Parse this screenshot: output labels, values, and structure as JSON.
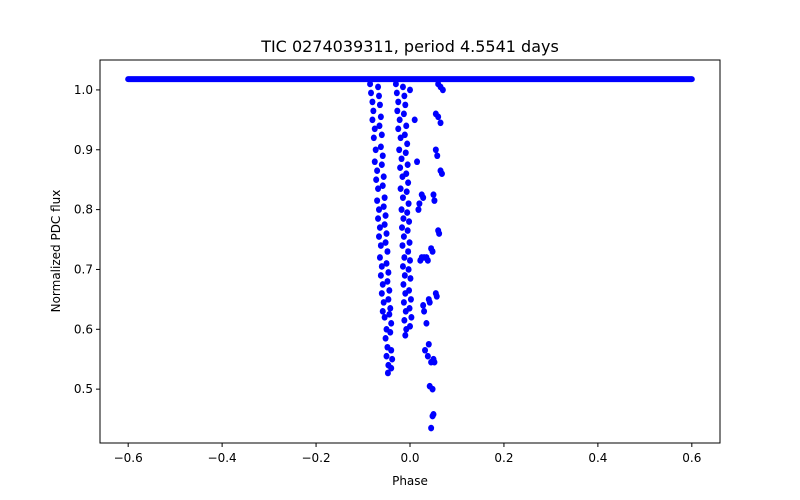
{
  "chart_data": {
    "type": "scatter",
    "title": "TIC 0274039311, period 4.5541 days",
    "xlabel": "Phase",
    "ylabel": "Normalized PDC flux",
    "xlim": [
      -0.66,
      0.66
    ],
    "ylim": [
      0.41,
      1.05
    ],
    "xticks": [
      -0.6,
      -0.4,
      -0.2,
      0.0,
      0.2,
      0.4,
      0.6
    ],
    "xtick_labels": [
      "−0.6",
      "−0.4",
      "−0.2",
      "0.0",
      "0.2",
      "0.4",
      "0.6"
    ],
    "yticks": [
      0.5,
      0.6,
      0.7,
      0.8,
      0.9,
      1.0
    ],
    "ytick_labels": [
      "0.5",
      "0.6",
      "0.7",
      "0.8",
      "0.9",
      "1.0"
    ],
    "grid": false,
    "legend": null,
    "marker_color": "#0000ff",
    "series": [
      {
        "name": "baseline",
        "description": "Flat out-of-eclipse flux spanning phase -0.6 to 0.6",
        "x_range": [
          -0.6,
          0.6
        ],
        "y": 1.018
      },
      {
        "name": "in-eclipse points",
        "points": [
          [
            -0.085,
            1.01
          ],
          [
            -0.083,
            0.995
          ],
          [
            -0.08,
            0.98
          ],
          [
            -0.078,
            0.965
          ],
          [
            -0.08,
            0.95
          ],
          [
            -0.075,
            0.935
          ],
          [
            -0.077,
            0.92
          ],
          [
            -0.073,
            0.9
          ],
          [
            -0.075,
            0.88
          ],
          [
            -0.07,
            0.865
          ],
          [
            -0.072,
            0.85
          ],
          [
            -0.068,
            0.835
          ],
          [
            -0.07,
            0.815
          ],
          [
            -0.066,
            0.8
          ],
          [
            -0.068,
            0.785
          ],
          [
            -0.064,
            0.77
          ],
          [
            -0.066,
            0.755
          ],
          [
            -0.062,
            0.74
          ],
          [
            -0.064,
            0.72
          ],
          [
            -0.06,
            0.705
          ],
          [
            -0.062,
            0.69
          ],
          [
            -0.058,
            0.675
          ],
          [
            -0.06,
            0.66
          ],
          [
            -0.056,
            0.645
          ],
          [
            -0.058,
            0.63
          ],
          [
            -0.054,
            0.62
          ],
          [
            -0.05,
            0.6
          ],
          [
            -0.052,
            0.585
          ],
          [
            -0.048,
            0.57
          ],
          [
            -0.05,
            0.555
          ],
          [
            -0.046,
            0.54
          ],
          [
            -0.047,
            0.527
          ],
          [
            -0.068,
            1.005
          ],
          [
            -0.066,
            0.99
          ],
          [
            -0.064,
            0.975
          ],
          [
            -0.062,
            0.955
          ],
          [
            -0.065,
            0.94
          ],
          [
            -0.06,
            0.925
          ],
          [
            -0.062,
            0.905
          ],
          [
            -0.058,
            0.89
          ],
          [
            -0.06,
            0.875
          ],
          [
            -0.056,
            0.855
          ],
          [
            -0.058,
            0.84
          ],
          [
            -0.054,
            0.82
          ],
          [
            -0.056,
            0.805
          ],
          [
            -0.052,
            0.79
          ],
          [
            -0.054,
            0.775
          ],
          [
            -0.05,
            0.76
          ],
          [
            -0.052,
            0.745
          ],
          [
            -0.048,
            0.73
          ],
          [
            -0.05,
            0.71
          ],
          [
            -0.046,
            0.695
          ],
          [
            -0.048,
            0.68
          ],
          [
            -0.044,
            0.665
          ],
          [
            -0.046,
            0.65
          ],
          [
            -0.042,
            0.635
          ],
          [
            -0.044,
            0.625
          ],
          [
            -0.04,
            0.61
          ],
          [
            -0.042,
            0.595
          ],
          [
            -0.04,
            0.565
          ],
          [
            -0.038,
            0.55
          ],
          [
            -0.04,
            0.535
          ],
          [
            -0.03,
            1.01
          ],
          [
            -0.028,
            0.995
          ],
          [
            -0.025,
            0.98
          ],
          [
            -0.027,
            0.965
          ],
          [
            -0.022,
            0.95
          ],
          [
            -0.025,
            0.935
          ],
          [
            -0.02,
            0.92
          ],
          [
            -0.023,
            0.9
          ],
          [
            -0.018,
            0.885
          ],
          [
            -0.021,
            0.87
          ],
          [
            -0.016,
            0.855
          ],
          [
            -0.02,
            0.835
          ],
          [
            -0.015,
            0.82
          ],
          [
            -0.018,
            0.8
          ],
          [
            -0.014,
            0.785
          ],
          [
            -0.017,
            0.77
          ],
          [
            -0.013,
            0.755
          ],
          [
            -0.016,
            0.74
          ],
          [
            -0.012,
            0.72
          ],
          [
            -0.015,
            0.705
          ],
          [
            -0.011,
            0.69
          ],
          [
            -0.014,
            0.675
          ],
          [
            -0.01,
            0.66
          ],
          [
            -0.013,
            0.645
          ],
          [
            -0.009,
            0.63
          ],
          [
            -0.012,
            0.615
          ],
          [
            -0.008,
            0.6
          ],
          [
            -0.01,
            0.59
          ],
          [
            -0.015,
            1.005
          ],
          [
            -0.012,
            0.99
          ],
          [
            -0.01,
            0.975
          ],
          [
            -0.013,
            0.96
          ],
          [
            -0.008,
            0.94
          ],
          [
            -0.011,
            0.925
          ],
          [
            -0.006,
            0.91
          ],
          [
            -0.009,
            0.895
          ],
          [
            -0.005,
            0.875
          ],
          [
            -0.008,
            0.86
          ],
          [
            -0.004,
            0.845
          ],
          [
            -0.007,
            0.83
          ],
          [
            -0.003,
            0.81
          ],
          [
            -0.006,
            0.795
          ],
          [
            -0.002,
            0.78
          ],
          [
            -0.005,
            0.765
          ],
          [
            -0.001,
            0.745
          ],
          [
            -0.004,
            0.73
          ],
          [
            0.0,
            0.715
          ],
          [
            -0.003,
            0.7
          ],
          [
            0.001,
            0.685
          ],
          [
            -0.002,
            0.665
          ],
          [
            0.002,
            0.65
          ],
          [
            -0.001,
            0.635
          ],
          [
            0.003,
            0.62
          ],
          [
            0.0,
            0.605
          ],
          [
            0.0,
            1.0
          ],
          [
            0.01,
            0.95
          ],
          [
            0.015,
            0.88
          ],
          [
            0.02,
            0.81
          ],
          [
            0.018,
            0.8
          ],
          [
            0.025,
            0.72
          ],
          [
            0.022,
            0.715
          ],
          [
            0.03,
            0.72
          ],
          [
            0.028,
            0.64
          ],
          [
            0.03,
            0.63
          ],
          [
            0.035,
            0.61
          ],
          [
            0.032,
            0.565
          ],
          [
            0.04,
            0.575
          ],
          [
            0.038,
            0.555
          ],
          [
            0.045,
            0.545
          ],
          [
            0.042,
            0.505
          ],
          [
            0.048,
            0.5
          ],
          [
            0.05,
            0.458
          ],
          [
            0.048,
            0.455
          ],
          [
            0.045,
            0.435
          ],
          [
            0.06,
            1.01
          ],
          [
            0.065,
            1.005
          ],
          [
            0.07,
            1.0
          ],
          [
            0.055,
            0.96
          ],
          [
            0.06,
            0.955
          ],
          [
            0.065,
            0.945
          ],
          [
            0.055,
            0.9
          ],
          [
            0.058,
            0.89
          ],
          [
            0.065,
            0.865
          ],
          [
            0.068,
            0.86
          ],
          [
            0.05,
            0.825
          ],
          [
            0.052,
            0.815
          ],
          [
            0.06,
            0.765
          ],
          [
            0.062,
            0.76
          ],
          [
            0.045,
            0.735
          ],
          [
            0.048,
            0.73
          ],
          [
            0.055,
            0.66
          ],
          [
            0.057,
            0.655
          ],
          [
            0.04,
            0.65
          ],
          [
            0.042,
            0.645
          ],
          [
            0.05,
            0.55
          ],
          [
            0.052,
            0.545
          ],
          [
            0.025,
            0.825
          ],
          [
            0.028,
            0.82
          ],
          [
            0.035,
            0.72
          ],
          [
            0.038,
            0.715
          ]
        ]
      }
    ]
  }
}
